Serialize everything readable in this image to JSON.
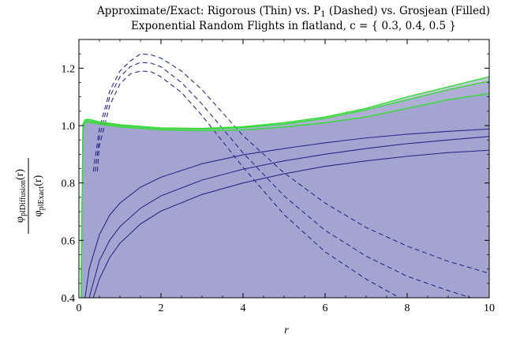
{
  "chart_data": {
    "type": "line",
    "title_line1": "Approximate/Exact: Rigorous (Thin) vs. P",
    "title_line1_sub": "1",
    "title_line1_rest": " (Dashed) vs. Grosjean (Filled)",
    "title_line2": "Exponential Random Flights in flatland, c = { 0.3, 0.4, 0.5 }",
    "xlabel": "r",
    "ylabel_num_main": "φ",
    "ylabel_num_sub": "plDiffusion",
    "ylabel_num_arg": "(r)",
    "ylabel_den_main": "φ",
    "ylabel_den_sub": "plExact",
    "ylabel_den_arg": "(r)",
    "xlim": [
      0,
      10
    ],
    "ylim": [
      0.4,
      1.3
    ],
    "xticks": [
      0,
      2,
      4,
      6,
      8,
      10
    ],
    "yticks": [
      0.4,
      0.6,
      0.8,
      1.0,
      1.2
    ],
    "ytick_labels": [
      "0.4",
      "0.6",
      "0.8",
      "1.0",
      "1.2"
    ],
    "colors": {
      "rigorous": "#2b2b8c",
      "fill": "#9b9bcc",
      "grosjean_line": "#33dd33",
      "frame": "#000000"
    },
    "series": [
      {
        "style": "thin",
        "x": [
          0.35,
          0.5,
          0.75,
          1,
          1.5,
          2,
          3,
          4,
          5,
          6,
          7,
          8,
          9,
          10
        ],
        "values": [
          0.4,
          0.466,
          0.54,
          0.59,
          0.657,
          0.702,
          0.76,
          0.8,
          0.832,
          0.858,
          0.877,
          0.893,
          0.906,
          0.914
        ]
      },
      {
        "style": "thin",
        "x": [
          0.25,
          0.5,
          0.75,
          1,
          1.5,
          2,
          3,
          4,
          5,
          6,
          7,
          8,
          9,
          10
        ],
        "values": [
          0.4,
          0.53,
          0.6,
          0.648,
          0.712,
          0.755,
          0.81,
          0.848,
          0.877,
          0.9,
          0.92,
          0.937,
          0.95,
          0.962
        ]
      },
      {
        "style": "thin",
        "x": [
          0.15,
          0.25,
          0.5,
          0.75,
          1,
          1.5,
          2,
          3,
          4,
          5,
          6,
          7,
          8,
          9,
          10
        ],
        "values": [
          0.4,
          0.5,
          0.62,
          0.688,
          0.73,
          0.785,
          0.82,
          0.867,
          0.898,
          0.92,
          0.94,
          0.957,
          0.97,
          0.98,
          0.988
        ]
      },
      {
        "style": "dashed",
        "x": [
          0.35,
          0.5,
          0.75,
          1,
          1.25,
          1.5,
          1.75,
          2,
          2.5,
          3,
          3.5,
          4,
          5,
          6,
          7,
          8,
          9,
          10
        ],
        "values": [
          0.84,
          0.99,
          1.12,
          1.19,
          1.225,
          1.25,
          1.247,
          1.235,
          1.19,
          1.125,
          1.045,
          0.965,
          0.835,
          0.73,
          0.645,
          0.58,
          0.527,
          0.485
        ]
      },
      {
        "style": "dashed",
        "x": [
          0.4,
          0.5,
          0.75,
          1,
          1.25,
          1.5,
          1.75,
          2,
          2.5,
          3,
          3.5,
          4,
          5,
          6,
          7,
          8,
          9,
          10
        ],
        "values": [
          0.84,
          0.96,
          1.1,
          1.17,
          1.205,
          1.22,
          1.218,
          1.205,
          1.15,
          1.075,
          0.99,
          0.905,
          0.755,
          0.635,
          0.545,
          0.475,
          0.425,
          0.38
        ]
      },
      {
        "style": "dashed",
        "x": [
          0.45,
          0.5,
          0.75,
          1,
          1.25,
          1.5,
          1.75,
          2,
          2.5,
          3,
          3.5,
          4,
          5,
          6,
          7,
          8,
          9,
          10
        ],
        "values": [
          0.84,
          0.93,
          1.07,
          1.145,
          1.18,
          1.19,
          1.188,
          1.17,
          1.115,
          1.035,
          0.945,
          0.855,
          0.69,
          0.56,
          0.465,
          0.385,
          0.32,
          0.27
        ]
      },
      {
        "style": "filled",
        "x": [
          0.05,
          0.1,
          0.15,
          0.2,
          0.3,
          0.5,
          1,
          2,
          3,
          4,
          5,
          6,
          7,
          8,
          9,
          10
        ],
        "values": [
          0.4,
          0.99,
          1.01,
          1.012,
          1.01,
          1.005,
          0.995,
          0.985,
          0.982,
          0.985,
          0.995,
          1.01,
          1.03,
          1.06,
          1.09,
          1.112
        ]
      },
      {
        "style": "filled",
        "x": [
          0.05,
          0.1,
          0.15,
          0.2,
          0.3,
          0.5,
          1,
          2,
          3,
          4,
          5,
          6,
          7,
          8,
          9,
          10
        ],
        "values": [
          0.4,
          1.0,
          1.015,
          1.018,
          1.015,
          1.01,
          1.0,
          0.99,
          0.988,
          0.993,
          1.005,
          1.025,
          1.055,
          1.09,
          1.125,
          1.155
        ]
      },
      {
        "style": "filled",
        "x": [
          0.05,
          0.1,
          0.15,
          0.2,
          0.3,
          0.5,
          1,
          2,
          3,
          4,
          5,
          6,
          7,
          8,
          9,
          10
        ],
        "values": [
          0.4,
          1.005,
          1.02,
          1.022,
          1.02,
          1.013,
          1.003,
          0.992,
          0.99,
          0.996,
          1.01,
          1.03,
          1.06,
          1.1,
          1.135,
          1.17
        ]
      }
    ]
  }
}
